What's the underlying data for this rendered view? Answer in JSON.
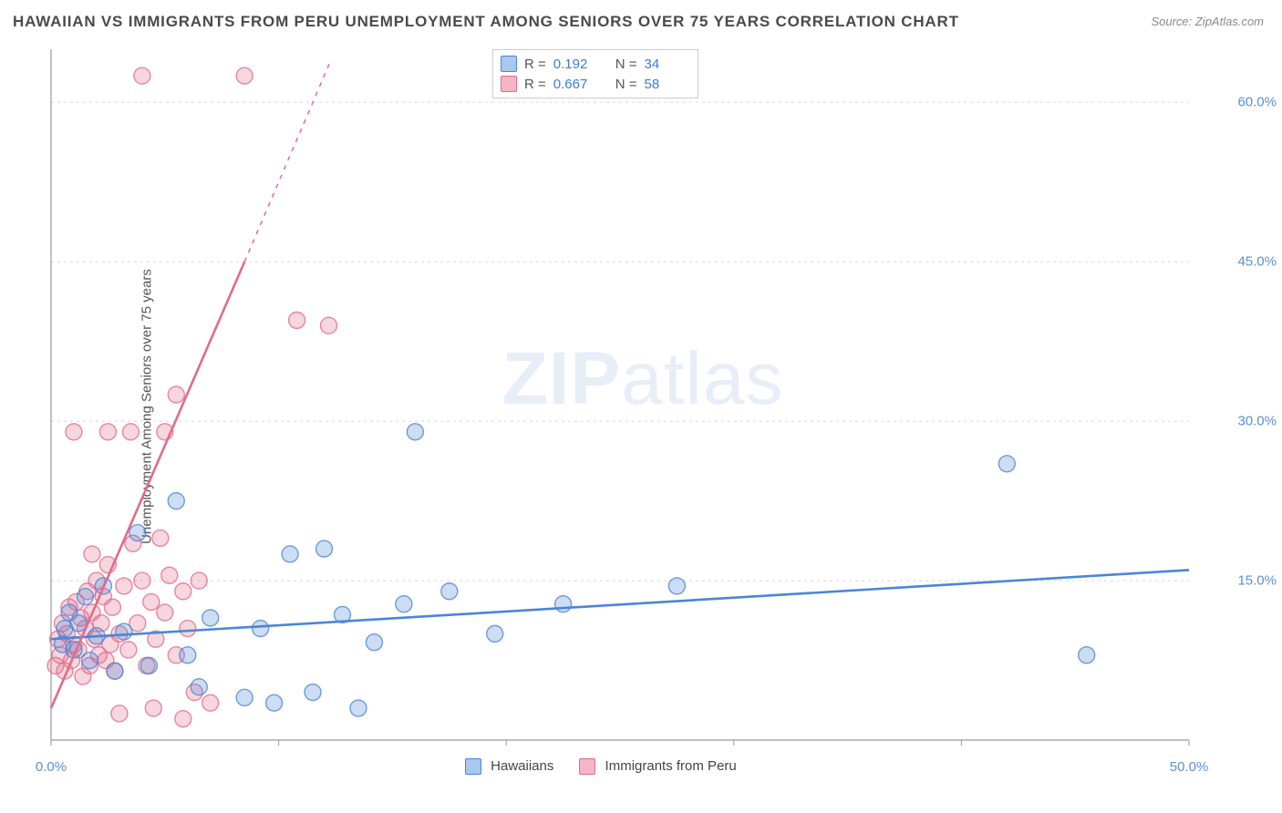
{
  "title": "HAWAIIAN VS IMMIGRANTS FROM PERU UNEMPLOYMENT AMONG SENIORS OVER 75 YEARS CORRELATION CHART",
  "source": "Source: ZipAtlas.com",
  "ylabel": "Unemployment Among Seniors over 75 years",
  "watermark_a": "ZIP",
  "watermark_b": "atlas",
  "chart": {
    "type": "scatter",
    "background_color": "#ffffff",
    "grid_color": "#d8d8d8",
    "axis_color": "#999999",
    "xlim": [
      0,
      50
    ],
    "ylim": [
      0,
      65
    ],
    "x_ticks": [
      0,
      10,
      20,
      30,
      40,
      50
    ],
    "x_tick_labels": [
      "0.0%",
      "",
      "",
      "",
      "",
      "50.0%"
    ],
    "y_ticks": [
      15,
      30,
      45,
      60
    ],
    "y_tick_labels": [
      "15.0%",
      "30.0%",
      "45.0%",
      "60.0%"
    ],
    "marker_radius": 9,
    "marker_fill_opacity": 0.28,
    "marker_stroke_width": 1.4,
    "trend_line_width": 2.6,
    "series": {
      "hawaiians": {
        "label": "Hawaiians",
        "color": "#4a86d8",
        "fill": "#a9c8ef",
        "R": "0.192",
        "N": "34",
        "trend": {
          "x1": 0,
          "y1": 9.5,
          "x2": 50,
          "y2": 16.0,
          "dashed": false
        },
        "points": [
          [
            0.5,
            9
          ],
          [
            0.6,
            10.5
          ],
          [
            0.8,
            12
          ],
          [
            1.0,
            8.5
          ],
          [
            1.2,
            11
          ],
          [
            1.5,
            13.5
          ],
          [
            1.7,
            7.5
          ],
          [
            2.0,
            9.8
          ],
          [
            2.3,
            14.5
          ],
          [
            2.8,
            6.5
          ],
          [
            3.2,
            10.2
          ],
          [
            3.8,
            19.5
          ],
          [
            4.3,
            7.0
          ],
          [
            5.5,
            22.5
          ],
          [
            6.0,
            8.0
          ],
          [
            6.5,
            5.0
          ],
          [
            7.0,
            11.5
          ],
          [
            8.5,
            4.0
          ],
          [
            9.2,
            10.5
          ],
          [
            9.8,
            3.5
          ],
          [
            10.5,
            17.5
          ],
          [
            11.5,
            4.5
          ],
          [
            12.0,
            18.0
          ],
          [
            12.8,
            11.8
          ],
          [
            13.5,
            3.0
          ],
          [
            14.2,
            9.2
          ],
          [
            15.5,
            12.8
          ],
          [
            16.0,
            29.0
          ],
          [
            17.5,
            14.0
          ],
          [
            19.5,
            10.0
          ],
          [
            22.5,
            12.8
          ],
          [
            27.5,
            14.5
          ],
          [
            42.0,
            26.0
          ],
          [
            45.5,
            8.0
          ]
        ]
      },
      "peru": {
        "label": "Immigrants from Peru",
        "color": "#e26b8a",
        "fill": "#f4b6c6",
        "R": "0.667",
        "N": "58",
        "trend": {
          "x1": 0,
          "y1": 3.0,
          "x2": 8.5,
          "y2": 45.0,
          "dashed_ext": {
            "x2": 12.3,
            "y2": 64.0
          }
        },
        "points": [
          [
            0.2,
            7
          ],
          [
            0.3,
            9.5
          ],
          [
            0.4,
            8
          ],
          [
            0.5,
            11
          ],
          [
            0.6,
            6.5
          ],
          [
            0.7,
            10
          ],
          [
            0.8,
            12.5
          ],
          [
            0.9,
            7.5
          ],
          [
            1.0,
            9
          ],
          [
            1.1,
            13
          ],
          [
            1.2,
            8.5
          ],
          [
            1.3,
            11.5
          ],
          [
            1.4,
            6
          ],
          [
            1.5,
            10.5
          ],
          [
            1.6,
            14
          ],
          [
            1.7,
            7
          ],
          [
            1.8,
            12
          ],
          [
            1.9,
            9.5
          ],
          [
            2.0,
            15
          ],
          [
            2.1,
            8
          ],
          [
            2.2,
            11
          ],
          [
            2.3,
            13.5
          ],
          [
            2.4,
            7.5
          ],
          [
            2.5,
            16.5
          ],
          [
            2.6,
            9
          ],
          [
            2.7,
            12.5
          ],
          [
            2.8,
            6.5
          ],
          [
            3.0,
            10
          ],
          [
            3.2,
            14.5
          ],
          [
            3.4,
            8.5
          ],
          [
            3.6,
            18.5
          ],
          [
            3.8,
            11
          ],
          [
            4.0,
            15
          ],
          [
            4.2,
            7
          ],
          [
            4.4,
            13
          ],
          [
            4.6,
            9.5
          ],
          [
            4.8,
            19
          ],
          [
            5.0,
            12
          ],
          [
            5.2,
            15.5
          ],
          [
            5.5,
            8
          ],
          [
            5.8,
            14
          ],
          [
            6.0,
            10.5
          ],
          [
            2.5,
            29
          ],
          [
            3.5,
            29
          ],
          [
            5.0,
            29
          ],
          [
            5.5,
            32.5
          ],
          [
            6.5,
            15
          ],
          [
            7.0,
            3.5
          ],
          [
            3.0,
            2.5
          ],
          [
            4.5,
            3.0
          ],
          [
            5.8,
            2.0
          ],
          [
            6.3,
            4.5
          ],
          [
            4.0,
            62.5
          ],
          [
            8.5,
            62.5
          ],
          [
            10.8,
            39.5
          ],
          [
            12.2,
            39.0
          ],
          [
            1.0,
            29.0
          ],
          [
            1.8,
            17.5
          ]
        ]
      }
    }
  },
  "legend_top": {
    "r_label": "R  =",
    "n_label": "N  ="
  }
}
